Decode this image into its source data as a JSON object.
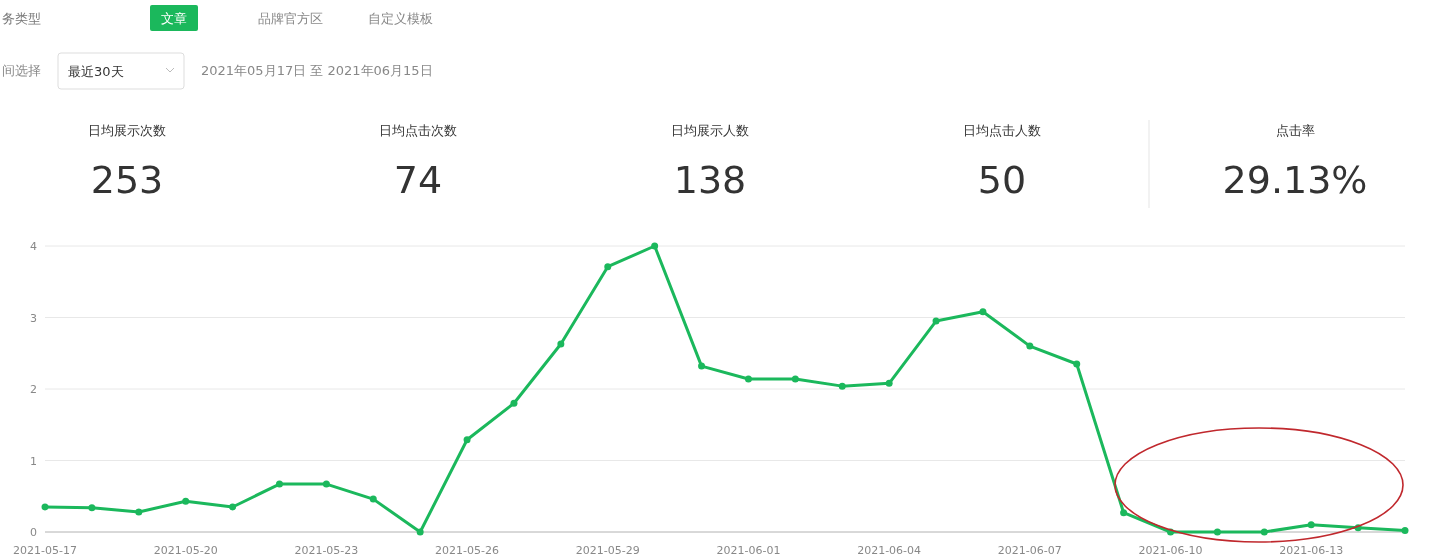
{
  "chart_data": [
    {
      "type": "other",
      "categories": [
        "日均展示次数",
        "日均点击次数",
        "日均展示人数",
        "日均点击人数",
        "点击率"
      ],
      "value_labels": [
        "253",
        "74",
        "138",
        "50",
        "29.13%"
      ],
      "annotations": [
        "务类型",
        "文章",
        "品牌官方区",
        "自定义模板",
        "间选择",
        "最近30天",
        "2021年05月17日 至 2021年06月15日"
      ]
    },
    {
      "type": "line",
      "color": "#1bb85c",
      "marker": "circle",
      "grid": "y",
      "ylim": [
        0,
        4
      ],
      "yticks": [
        0,
        1,
        2,
        3,
        4
      ],
      "xlim": [
        "2021-05-17",
        "2021-06-15"
      ],
      "xticks": [
        "2021-05-17",
        "2021-05-20",
        "2021-05-23",
        "2021-05-26",
        "2021-05-29",
        "2021-06-01",
        "2021-06-04",
        "2021-06-07",
        "2021-06-10",
        "2021-06-13"
      ],
      "x": [
        "2021-05-17",
        "2021-05-18",
        "2021-05-19",
        "2021-05-20",
        "2021-05-21",
        "2021-05-22",
        "2021-05-23",
        "2021-05-24",
        "2021-05-25",
        "2021-05-26",
        "2021-05-27",
        "2021-05-28",
        "2021-05-29",
        "2021-05-30",
        "2021-05-31",
        "2021-06-01",
        "2021-06-02",
        "2021-06-03",
        "2021-06-04",
        "2021-06-05",
        "2021-06-06",
        "2021-06-07",
        "2021-06-08",
        "2021-06-09",
        "2021-06-10",
        "2021-06-11",
        "2021-06-12",
        "2021-06-13",
        "2021-06-14",
        "2021-06-15"
      ],
      "values": [
        0.35,
        0.34,
        0.28,
        0.43,
        0.35,
        0.67,
        0.67,
        0.46,
        0,
        1.29,
        1.8,
        2.63,
        3.71,
        4.0,
        2.32,
        2.14,
        2.14,
        2.04,
        2.08,
        2.95,
        3.08,
        2.6,
        2.35,
        0.27,
        0,
        0,
        0,
        0.1,
        0.06,
        0.02
      ]
    }
  ]
}
